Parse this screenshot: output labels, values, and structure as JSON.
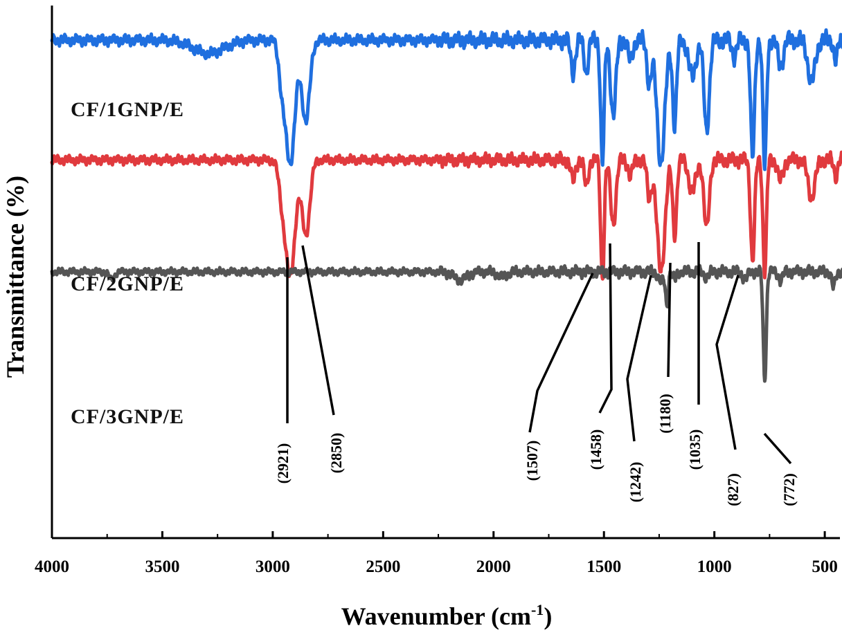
{
  "chart_data": {
    "type": "line",
    "title": "",
    "xlabel": "Wavenumber (cm",
    "xlabel_superscript": "-1",
    "xlabel_close": ")",
    "ylabel": "Transmittance (%)",
    "xlim": [
      4000,
      400
    ],
    "x_ticks": [
      4000,
      3500,
      3000,
      2500,
      2000,
      1500,
      1000,
      500
    ],
    "y_ticks_shown": false,
    "grid": false,
    "legend": "inline labels",
    "series": [
      {
        "name": "CF/1GNP/E",
        "color": "#1f6fdf",
        "baseline": 0.935,
        "noise": 0.012,
        "bands": [
          {
            "x": 3290,
            "depth": 0.025,
            "width": 70
          },
          {
            "x": 2921,
            "depth": 0.23,
            "width": 22
          },
          {
            "x": 2850,
            "depth": 0.15,
            "width": 18
          },
          {
            "x": 2960,
            "depth": 0.06,
            "width": 14
          },
          {
            "x": 1640,
            "depth": 0.06,
            "width": 10
          },
          {
            "x": 1580,
            "depth": 0.06,
            "width": 9
          },
          {
            "x": 1507,
            "depth": 0.23,
            "width": 8
          },
          {
            "x": 1458,
            "depth": 0.14,
            "width": 12
          },
          {
            "x": 1380,
            "depth": 0.04,
            "width": 10
          },
          {
            "x": 1295,
            "depth": 0.08,
            "width": 10
          },
          {
            "x": 1242,
            "depth": 0.23,
            "width": 18
          },
          {
            "x": 1180,
            "depth": 0.16,
            "width": 9
          },
          {
            "x": 1100,
            "depth": 0.07,
            "width": 16
          },
          {
            "x": 1035,
            "depth": 0.17,
            "width": 12
          },
          {
            "x": 910,
            "depth": 0.03,
            "width": 10
          },
          {
            "x": 827,
            "depth": 0.22,
            "width": 9
          },
          {
            "x": 772,
            "depth": 0.24,
            "width": 8
          },
          {
            "x": 700,
            "depth": 0.05,
            "width": 12
          },
          {
            "x": 560,
            "depth": 0.08,
            "width": 16
          },
          {
            "x": 450,
            "depth": 0.04,
            "width": 8
          }
        ]
      },
      {
        "name": "CF/2GNP/E",
        "color": "#e03a3e",
        "baseline": 0.71,
        "noise": 0.01,
        "bands": [
          {
            "x": 2921,
            "depth": 0.22,
            "width": 22
          },
          {
            "x": 2850,
            "depth": 0.14,
            "width": 18
          },
          {
            "x": 2960,
            "depth": 0.05,
            "width": 14
          },
          {
            "x": 1640,
            "depth": 0.04,
            "width": 10
          },
          {
            "x": 1580,
            "depth": 0.05,
            "width": 9
          },
          {
            "x": 1507,
            "depth": 0.22,
            "width": 8
          },
          {
            "x": 1458,
            "depth": 0.12,
            "width": 12
          },
          {
            "x": 1380,
            "depth": 0.03,
            "width": 10
          },
          {
            "x": 1295,
            "depth": 0.07,
            "width": 10
          },
          {
            "x": 1242,
            "depth": 0.21,
            "width": 18
          },
          {
            "x": 1180,
            "depth": 0.14,
            "width": 9
          },
          {
            "x": 1100,
            "depth": 0.06,
            "width": 16
          },
          {
            "x": 1035,
            "depth": 0.13,
            "width": 12
          },
          {
            "x": 827,
            "depth": 0.19,
            "width": 9
          },
          {
            "x": 772,
            "depth": 0.21,
            "width": 8
          },
          {
            "x": 700,
            "depth": 0.04,
            "width": 12
          },
          {
            "x": 560,
            "depth": 0.07,
            "width": 16
          },
          {
            "x": 450,
            "depth": 0.03,
            "width": 8
          }
        ]
      },
      {
        "name": "CF/3GNP/E",
        "color": "#555555",
        "baseline": 0.5,
        "noise": 0.008,
        "bands": [
          {
            "x": 3730,
            "depth": 0.015,
            "width": 12
          },
          {
            "x": 2150,
            "depth": 0.015,
            "width": 30
          },
          {
            "x": 1960,
            "depth": 0.01,
            "width": 20
          },
          {
            "x": 1240,
            "depth": 0.02,
            "width": 12
          },
          {
            "x": 1215,
            "depth": 0.06,
            "width": 6
          },
          {
            "x": 1180,
            "depth": 0.015,
            "width": 8
          },
          {
            "x": 1035,
            "depth": 0.01,
            "width": 10
          },
          {
            "x": 860,
            "depth": 0.015,
            "width": 10
          },
          {
            "x": 772,
            "depth": 0.2,
            "width": 7
          },
          {
            "x": 700,
            "depth": 0.015,
            "width": 10
          },
          {
            "x": 460,
            "depth": 0.03,
            "width": 8
          }
        ]
      }
    ],
    "annotations": [
      {
        "label": "(2921)",
        "x": 2921
      },
      {
        "label": "(2850)",
        "x": 2850
      },
      {
        "label": "(1507)",
        "x": 1507
      },
      {
        "label": "(1458)",
        "x": 1458
      },
      {
        "label": "(1242)",
        "x": 1242
      },
      {
        "label": "(1180)",
        "x": 1180
      },
      {
        "label": "(1035)",
        "x": 1035
      },
      {
        "label": "(827)",
        "x": 827
      },
      {
        "label": "(772)",
        "x": 772
      }
    ]
  }
}
